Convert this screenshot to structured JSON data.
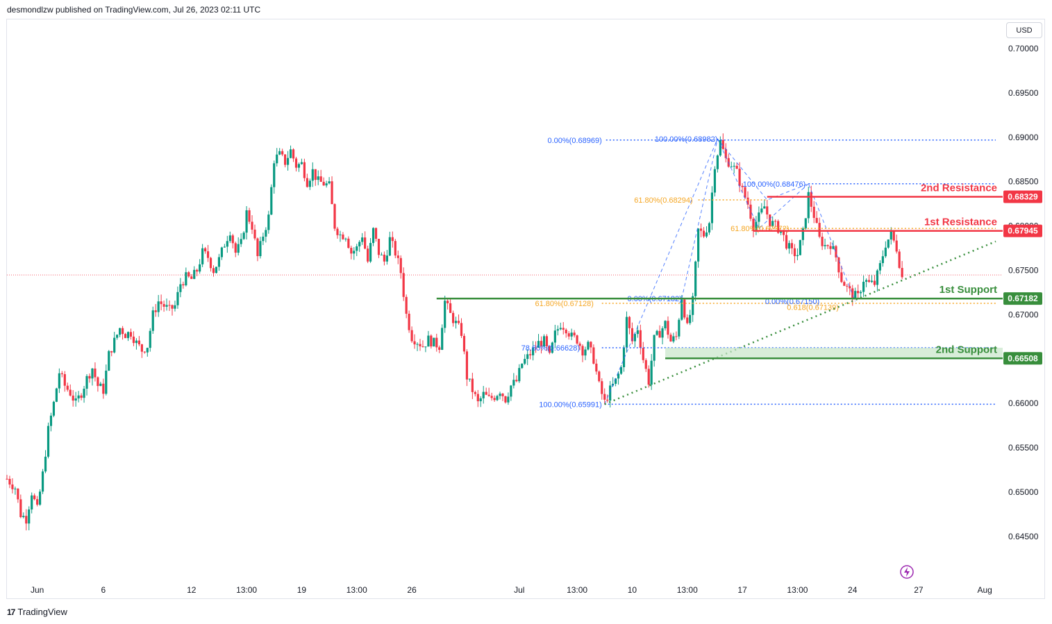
{
  "header": {
    "published": "desmondlzw published on TradingView.com, Jul 26, 2023 02:11 UTC"
  },
  "footer": {
    "brand": "TradingView"
  },
  "currency": "USD",
  "colors": {
    "up": "#089981",
    "down": "#f23645",
    "fib_blue": "#2962ff",
    "fib_orange": "#f5a623",
    "resistance": "#f23645",
    "support": "#388e3c",
    "trend": "#388e3c"
  },
  "chart_data": {
    "type": "candlestick",
    "ylim": [
      0.641,
      0.704
    ],
    "y_ticks": [
      0.7,
      0.695,
      0.69,
      0.685,
      0.68,
      0.675,
      0.67,
      0.665,
      0.66,
      0.655,
      0.65,
      0.645
    ],
    "y_tick_labels": [
      "0.70000",
      "0.69500",
      "0.69000",
      "0.68500",
      "0.68000",
      "0.67500",
      "0.67000",
      "0.66500",
      "0.66000",
      "0.65500",
      "0.65000",
      "0.64500"
    ],
    "x_labels": [
      {
        "t": 11,
        "label": "Jun"
      },
      {
        "t": 35,
        "label": "6"
      },
      {
        "t": 67,
        "label": "12"
      },
      {
        "t": 87,
        "label": "13:00"
      },
      {
        "t": 107,
        "label": "19"
      },
      {
        "t": 127,
        "label": "13:00"
      },
      {
        "t": 147,
        "label": "26"
      },
      {
        "t": 186,
        "label": "Jul"
      },
      {
        "t": 207,
        "label": "13:00"
      },
      {
        "t": 227,
        "label": "10"
      },
      {
        "t": 247,
        "label": "13:00"
      },
      {
        "t": 267,
        "label": "17"
      },
      {
        "t": 287,
        "label": "13:00"
      },
      {
        "t": 307,
        "label": "24"
      },
      {
        "t": 331,
        "label": "27"
      },
      {
        "t": 355,
        "label": "Aug"
      }
    ],
    "x_range": [
      0,
      359
    ],
    "ohlc_anchors": [
      [
        0,
        0.6515
      ],
      [
        3,
        0.6505
      ],
      [
        5,
        0.6475
      ],
      [
        7,
        0.647
      ],
      [
        9,
        0.65
      ],
      [
        11,
        0.648
      ],
      [
        13,
        0.652
      ],
      [
        15,
        0.657
      ],
      [
        17,
        0.66
      ],
      [
        19,
        0.6635
      ],
      [
        21,
        0.662
      ],
      [
        23,
        0.6612
      ],
      [
        25,
        0.66
      ],
      [
        27,
        0.6612
      ],
      [
        29,
        0.6628
      ],
      [
        31,
        0.664
      ],
      [
        33,
        0.662
      ],
      [
        35,
        0.6615
      ],
      [
        37,
        0.6655
      ],
      [
        39,
        0.667
      ],
      [
        41,
        0.6685
      ],
      [
        43,
        0.6678
      ],
      [
        45,
        0.668
      ],
      [
        47,
        0.6668
      ],
      [
        49,
        0.666
      ],
      [
        51,
        0.6665
      ],
      [
        53,
        0.67
      ],
      [
        55,
        0.6715
      ],
      [
        57,
        0.671
      ],
      [
        59,
        0.6705
      ],
      [
        61,
        0.671
      ],
      [
        63,
        0.6735
      ],
      [
        65,
        0.6742
      ],
      [
        67,
        0.674
      ],
      [
        69,
        0.675
      ],
      [
        71,
        0.677
      ],
      [
        73,
        0.6765
      ],
      [
        75,
        0.675
      ],
      [
        77,
        0.6762
      ],
      [
        79,
        0.678
      ],
      [
        81,
        0.6795
      ],
      [
        83,
        0.677
      ],
      [
        85,
        0.678
      ],
      [
        87,
        0.6815
      ],
      [
        89,
        0.68
      ],
      [
        91,
        0.6765
      ],
      [
        93,
        0.679
      ],
      [
        95,
        0.681
      ],
      [
        97,
        0.6875
      ],
      [
        99,
        0.688
      ],
      [
        101,
        0.6872
      ],
      [
        103,
        0.6885
      ],
      [
        105,
        0.6868
      ],
      [
        107,
        0.687
      ],
      [
        109,
        0.685
      ],
      [
        111,
        0.6862
      ],
      [
        113,
        0.685
      ],
      [
        115,
        0.6848
      ],
      [
        117,
        0.6845
      ],
      [
        119,
        0.68
      ],
      [
        121,
        0.679
      ],
      [
        123,
        0.679
      ],
      [
        125,
        0.677
      ],
      [
        127,
        0.6775
      ],
      [
        129,
        0.679
      ],
      [
        131,
        0.676
      ],
      [
        133,
        0.6795
      ],
      [
        135,
        0.677
      ],
      [
        137,
        0.676
      ],
      [
        139,
        0.6785
      ],
      [
        141,
        0.677
      ],
      [
        143,
        0.6748
      ],
      [
        145,
        0.67
      ],
      [
        147,
        0.6675
      ],
      [
        149,
        0.667
      ],
      [
        151,
        0.6665
      ],
      [
        153,
        0.6672
      ],
      [
        155,
        0.6668
      ],
      [
        157,
        0.6665
      ],
      [
        159,
        0.6715
      ],
      [
        161,
        0.67
      ],
      [
        163,
        0.669
      ],
      [
        165,
        0.668
      ],
      [
        167,
        0.663
      ],
      [
        169,
        0.6615
      ],
      [
        171,
        0.66
      ],
      [
        173,
        0.661
      ],
      [
        175,
        0.6605
      ],
      [
        177,
        0.6608
      ],
      [
        179,
        0.6615
      ],
      [
        181,
        0.6605
      ],
      [
        183,
        0.662
      ],
      [
        185,
        0.6625
      ],
      [
        187,
        0.6645
      ],
      [
        189,
        0.6652
      ],
      [
        191,
        0.666
      ],
      [
        193,
        0.6668
      ],
      [
        195,
        0.667
      ],
      [
        197,
        0.6652
      ],
      [
        199,
        0.6678
      ],
      [
        201,
        0.669
      ],
      [
        203,
        0.6685
      ],
      [
        205,
        0.6675
      ],
      [
        207,
        0.6672
      ],
      [
        209,
        0.666
      ],
      [
        211,
        0.6665
      ],
      [
        213,
        0.665
      ],
      [
        215,
        0.662
      ],
      [
        217,
        0.6601
      ],
      [
        219,
        0.6615
      ],
      [
        221,
        0.6625
      ],
      [
        223,
        0.664
      ],
      [
        225,
        0.6695
      ],
      [
        227,
        0.667
      ],
      [
        229,
        0.6685
      ],
      [
        231,
        0.665
      ],
      [
        233,
        0.6625
      ],
      [
        235,
        0.6672
      ],
      [
        237,
        0.668
      ],
      [
        239,
        0.669
      ],
      [
        241,
        0.667
      ],
      [
        243,
        0.6675
      ],
      [
        245,
        0.672
      ],
      [
        247,
        0.6685
      ],
      [
        249,
        0.6715
      ],
      [
        251,
        0.6795
      ],
      [
        253,
        0.679
      ],
      [
        255,
        0.6805
      ],
      [
        257,
        0.687
      ],
      [
        259,
        0.6895
      ],
      [
        261,
        0.6875
      ],
      [
        263,
        0.687
      ],
      [
        265,
        0.686
      ],
      [
        267,
        0.684
      ],
      [
        269,
        0.6825
      ],
      [
        271,
        0.68
      ],
      [
        273,
        0.681
      ],
      [
        275,
        0.6822
      ],
      [
        277,
        0.6805
      ],
      [
        279,
        0.68
      ],
      [
        281,
        0.6795
      ],
      [
        283,
        0.678
      ],
      [
        285,
        0.677
      ],
      [
        287,
        0.6768
      ],
      [
        289,
        0.6792
      ],
      [
        291,
        0.6835
      ],
      [
        293,
        0.6812
      ],
      [
        295,
        0.6785
      ],
      [
        297,
        0.6778
      ],
      [
        299,
        0.678
      ],
      [
        301,
        0.6765
      ],
      [
        303,
        0.674
      ],
      [
        305,
        0.673
      ],
      [
        307,
        0.6722
      ],
      [
        309,
        0.672
      ],
      [
        311,
        0.674
      ],
      [
        313,
        0.6735
      ],
      [
        315,
        0.6735
      ],
      [
        317,
        0.6755
      ],
      [
        319,
        0.678
      ],
      [
        321,
        0.679
      ],
      [
        323,
        0.6775
      ],
      [
        325,
        0.6742
      ]
    ],
    "fib_labels": [
      {
        "text": "0.00%(0.68969)",
        "t": 216,
        "y": 0.68969,
        "color": "blue",
        "x_end": 359
      },
      {
        "text": "100.00%(0.68982)",
        "t": 258,
        "y": 0.68982,
        "color": "blue"
      },
      {
        "text": "100.00%(0.68476)",
        "t": 290,
        "y": 0.68476,
        "color": "blue",
        "x_start": 291,
        "x_end": 359
      },
      {
        "text": "61.80%(0.68294)",
        "t": 249,
        "y": 0.68294,
        "color": "orange",
        "x_start": 251,
        "x_end": 276
      },
      {
        "text": "61.80%(0.67972)",
        "t": 284,
        "y": 0.67972,
        "color": "orange",
        "x_start": 273,
        "x_end": 359
      },
      {
        "text": "61.80%(0.67128)",
        "t": 213,
        "y": 0.67128,
        "color": "orange",
        "x_start": 216,
        "x_end": 359
      },
      {
        "text": "0.00%(0.67182)",
        "t": 245,
        "y": 0.67182,
        "color": "blue"
      },
      {
        "text": "0.00%(0.67150)",
        "t": 295,
        "y": 0.6715,
        "color": "blue"
      },
      {
        "text": "0.618(0.67139)",
        "t": 302,
        "y": 0.67085,
        "color": "orange"
      },
      {
        "text": "78.60%(0.66628)",
        "t": 208,
        "y": 0.66628,
        "color": "blue",
        "x_start": 216,
        "x_end": 359
      },
      {
        "text": "100.00%(0.65991)",
        "t": 216,
        "y": 0.65991,
        "color": "blue",
        "x_start": 217,
        "x_end": 359
      }
    ],
    "levels": [
      {
        "name": "2nd Resistance",
        "value": 0.68329,
        "label": "0.68329",
        "kind": "resistance",
        "x_start": 276
      },
      {
        "name": "1st Resistance",
        "value": 0.67945,
        "label": "0.67945",
        "kind": "resistance",
        "x_start": 271
      },
      {
        "name": "1st Support",
        "value": 0.67182,
        "label": "0.67182",
        "kind": "support",
        "x_start": 156
      },
      {
        "name": "2nd Support",
        "value": 0.66508,
        "label": "0.66508",
        "kind": "support_zone",
        "zone_top": 0.66628,
        "x_start": 239
      }
    ],
    "trendline": {
      "from": [
        217,
        0.65991
      ],
      "to": [
        359,
        0.67826
      ]
    },
    "current_price": 0.67448,
    "pattern_lines": [
      [
        [
          217,
          0.65991
        ],
        [
          258,
          0.68982
        ],
        [
          276,
          0.68294
        ],
        [
          291,
          0.68476
        ],
        [
          308,
          0.6715
        ]
      ],
      [
        [
          258,
          0.68982
        ],
        [
          273,
          0.67972
        ],
        [
          291,
          0.68476
        ]
      ],
      [
        [
          245,
          0.67182
        ],
        [
          258,
          0.68982
        ]
      ]
    ]
  }
}
